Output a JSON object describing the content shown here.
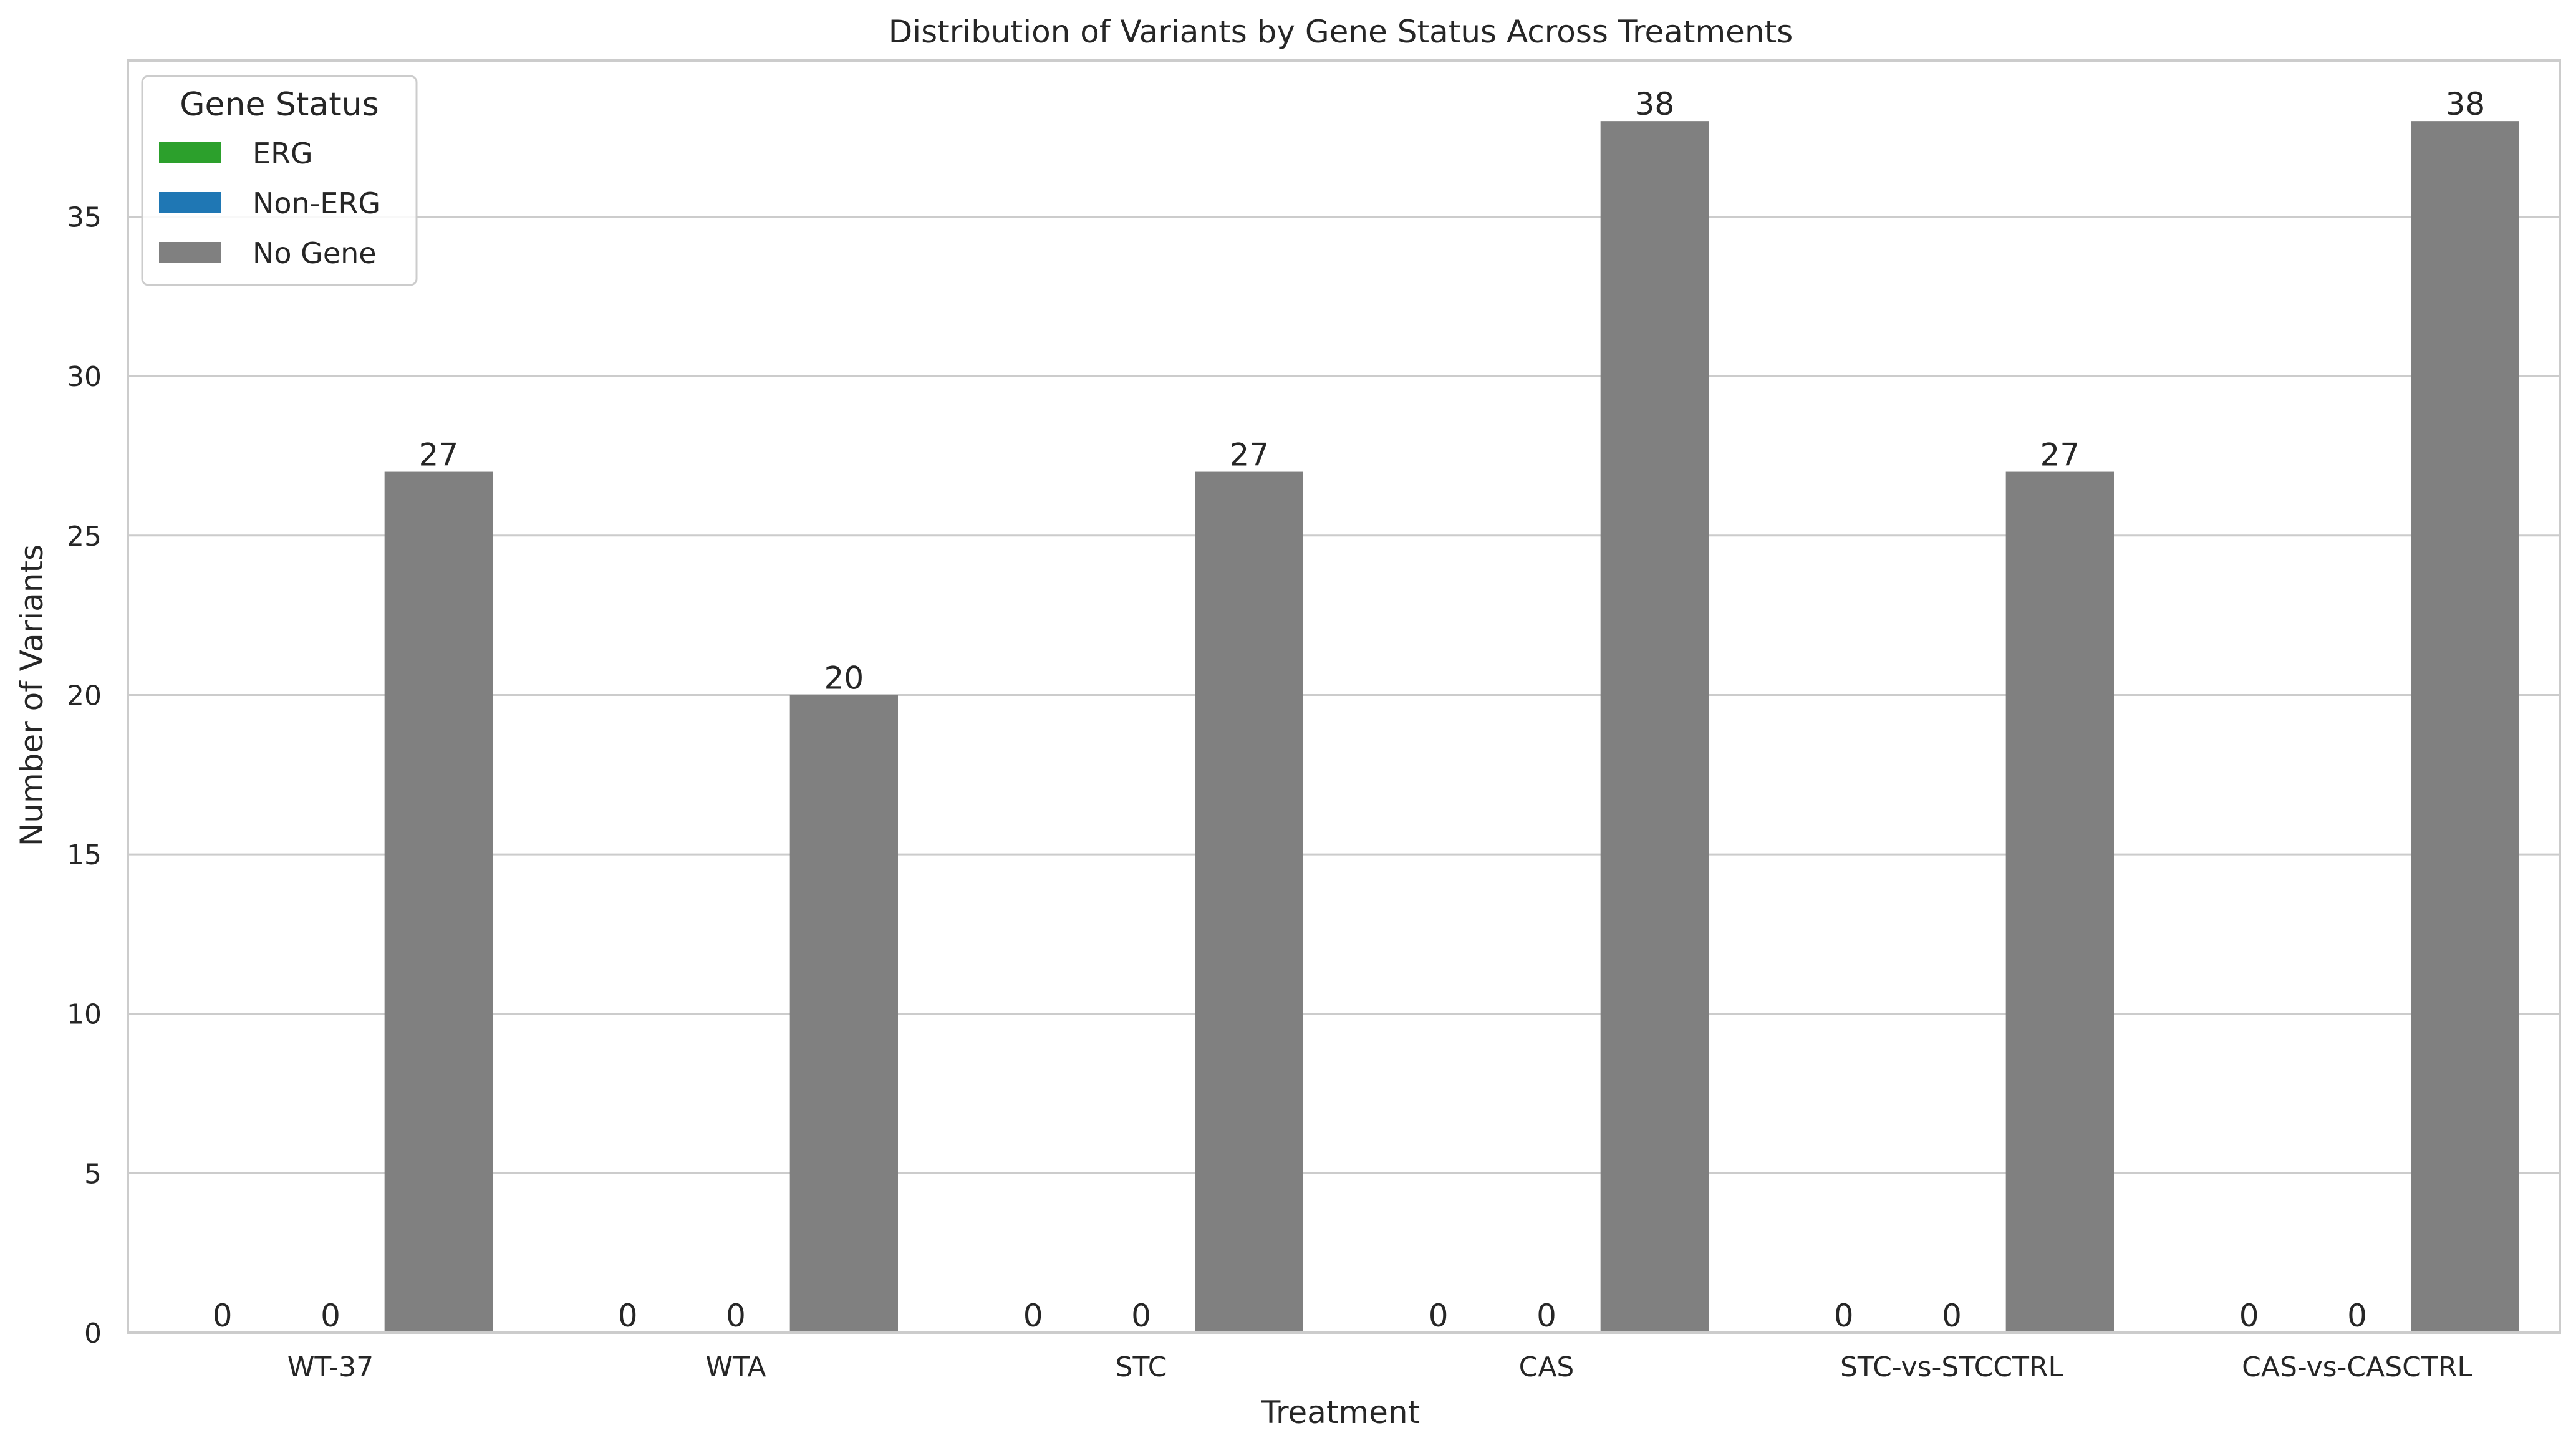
{
  "chart_data": {
    "type": "bar",
    "title": "Distribution of Variants by Gene Status Across Treatments",
    "xlabel": "Treatment",
    "ylabel": "Number of Variants",
    "categories": [
      "WT-37",
      "WTA",
      "STC",
      "CAS",
      "STC-vs-STCCTRL",
      "CAS-vs-CASCTRL"
    ],
    "series": [
      {
        "name": "ERG",
        "color": "#2ca02c",
        "values": [
          0,
          0,
          0,
          0,
          0,
          0
        ]
      },
      {
        "name": "Non-ERG",
        "color": "#1f77b4",
        "values": [
          0,
          0,
          0,
          0,
          0,
          0
        ]
      },
      {
        "name": "No Gene",
        "color": "#808080",
        "values": [
          27,
          20,
          27,
          38,
          27,
          38
        ]
      }
    ],
    "ylim": [
      0,
      39.9
    ],
    "yticks": [
      0,
      5,
      10,
      15,
      20,
      25,
      30,
      35
    ],
    "grid": "horizontal",
    "legend": {
      "title": "Gene Status",
      "placement": "top-left"
    }
  }
}
